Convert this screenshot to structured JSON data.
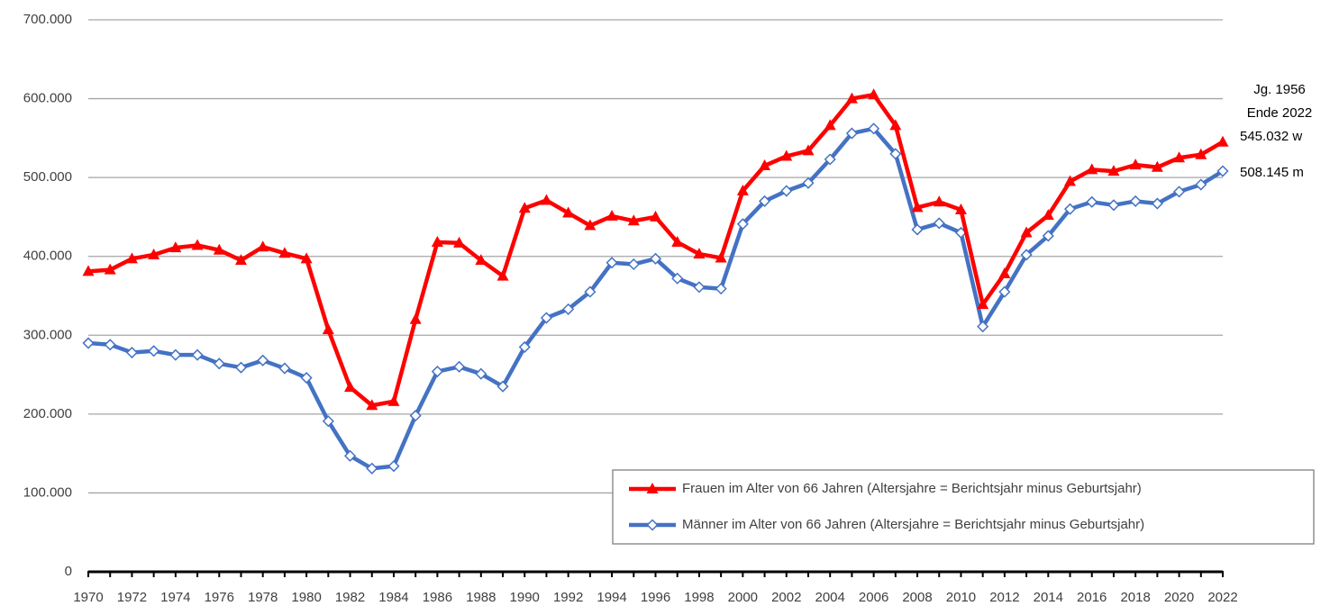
{
  "chart_data": {
    "type": "line",
    "categories": [
      "1970",
      null,
      "1972",
      null,
      "1974",
      null,
      "1976",
      null,
      "1978",
      null,
      "1980",
      null,
      "1982",
      null,
      "1984",
      null,
      "1986",
      null,
      "1988",
      null,
      "1990",
      null,
      "1992",
      null,
      "1994",
      null,
      "1996",
      null,
      "1998",
      null,
      "2000",
      null,
      "2002",
      null,
      "2004",
      null,
      "2006",
      null,
      "2008",
      null,
      "2010",
      null,
      "2012",
      null,
      "2014",
      null,
      "2016",
      null,
      "2018",
      null,
      "2020",
      null,
      "2022"
    ],
    "series": [
      {
        "name": "Frauen im Alter von 66 Jahren (Altersjahre = Berichtsjahr minus Geburtsjahr)",
        "color": "#ff0000",
        "marker": "triangle",
        "values": [
          381000,
          383000,
          397000,
          402000,
          411000,
          414000,
          408000,
          395000,
          412000,
          404000,
          397000,
          307000,
          234000,
          211000,
          216000,
          320000,
          418000,
          417000,
          395000,
          375000,
          461000,
          471000,
          455000,
          439000,
          451000,
          445000,
          450000,
          418000,
          403000,
          398000,
          483000,
          515000,
          527000,
          534000,
          566000,
          600000,
          605000,
          566000,
          462000,
          469000,
          459000,
          339000,
          378000,
          430000,
          452000,
          495000,
          510000,
          508000,
          516000,
          513000,
          525000,
          529000,
          545032
        ]
      },
      {
        "name": "Männer im Alter von 66 Jahren (Altersjahre = Berichtsjahr minus Geburtsjahr)",
        "color": "#4472c4",
        "marker": "diamond",
        "values": [
          290000,
          288000,
          278000,
          280000,
          275000,
          275000,
          264000,
          259000,
          268000,
          258000,
          246000,
          191000,
          147000,
          131000,
          134000,
          198000,
          254000,
          260000,
          251000,
          235000,
          285000,
          322000,
          333000,
          355000,
          392000,
          390000,
          397000,
          372000,
          361000,
          359000,
          441000,
          470000,
          483000,
          493000,
          523000,
          556000,
          562000,
          530000,
          434000,
          442000,
          430000,
          311000,
          355000,
          402000,
          426000,
          460000,
          469000,
          465000,
          470000,
          467000,
          482000,
          491000,
          508145
        ]
      }
    ],
    "annotations": [
      "Jg. 1956",
      "Ende 2022",
      "545.032 w",
      "508.145 m"
    ],
    "ylim": [
      0,
      700000
    ],
    "yticks": [
      0,
      {
        "value": 100000,
        "label": "100.000"
      },
      {
        "value": 200000,
        "label": "200.000"
      },
      {
        "value": 300000,
        "label": "300.000"
      },
      {
        "value": 400000,
        "label": "400.000"
      },
      {
        "value": 500000,
        "label": "500.000"
      },
      {
        "value": 600000,
        "label": "600.000"
      },
      {
        "value": 700000,
        "label": "700.000"
      }
    ],
    "grid": true
  }
}
